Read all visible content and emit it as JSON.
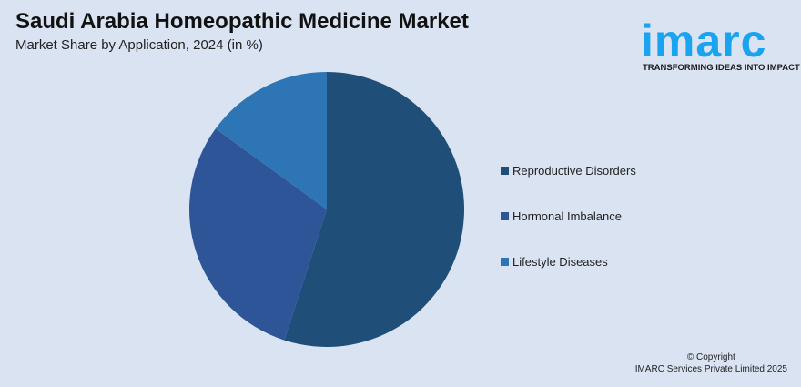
{
  "header": {
    "title": "Saudi Arabia Homeopathic Medicine Market",
    "subtitle": "Market Share by Application, 2024 (in %)"
  },
  "logo": {
    "word": "imarc",
    "tagline": "TRANSFORMING IDEAS INTO IMPACT",
    "color": "#1aa3ee"
  },
  "chart_data": {
    "type": "pie",
    "title": "Saudi Arabia Homeopathic Medicine Market",
    "subtitle": "Market Share by Application, 2024 (in %)",
    "categories": [
      "Reproductive Disorders",
      "Hormonal Imbalance",
      "Lifestyle Diseases"
    ],
    "values": [
      55,
      30,
      15
    ],
    "colors": [
      "#1f4e79",
      "#2e5597",
      "#2e75b6"
    ],
    "start": "12 o'clock, clockwise",
    "legend": "right"
  },
  "footer": {
    "copyright": "© Copyright",
    "company": "IMARC Services Private Limited 2025"
  }
}
